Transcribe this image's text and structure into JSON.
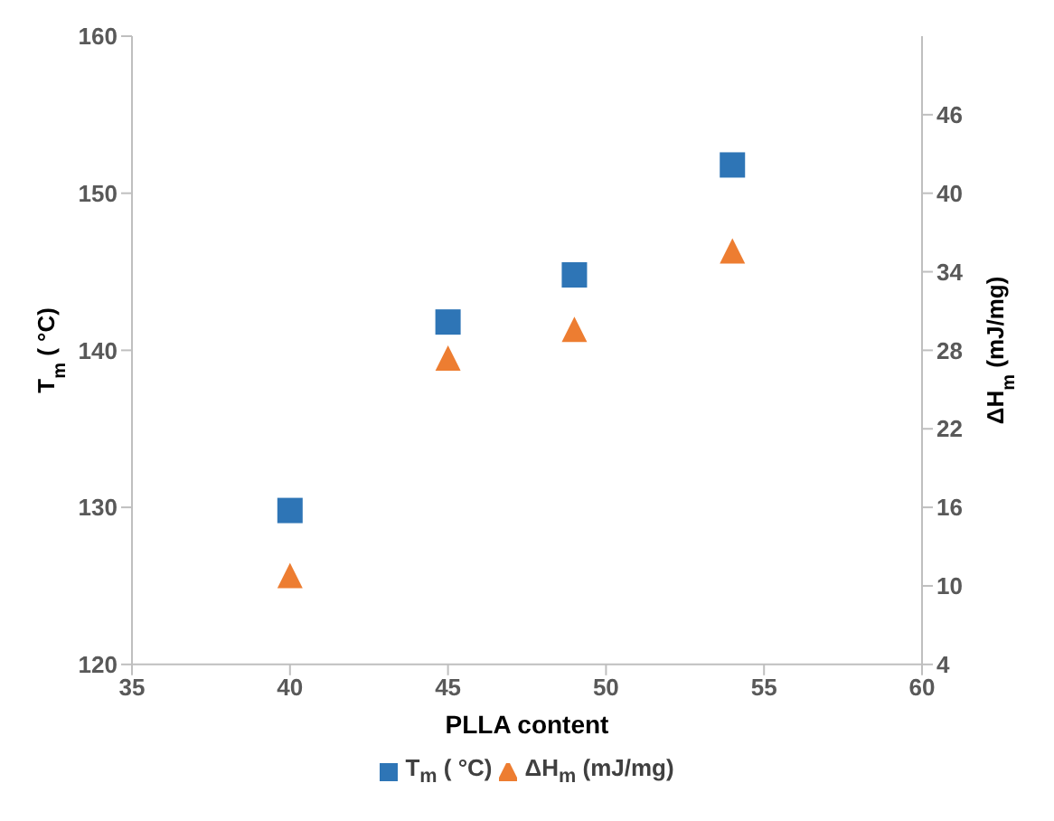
{
  "chart_data": {
    "type": "scatter",
    "xlabel": "PLLA content",
    "ylabel": "T$_{m}$ ( °C)",
    "y2label": "ΔH$_{m}$ (mJ/mg)",
    "xlim": [
      35,
      60
    ],
    "xticks": [
      35,
      40,
      45,
      50,
      55,
      60
    ],
    "ylim": [
      120,
      160
    ],
    "yticks": [
      120,
      130,
      140,
      150,
      160
    ],
    "y2lim": [
      4,
      52
    ],
    "y2ticks": [
      4,
      10,
      16,
      22,
      28,
      34,
      40,
      46
    ],
    "legend": "bottom",
    "grid": false,
    "series": [
      {
        "name": "T$_{m}$ ( °C)",
        "color": "#2e75b6",
        "marker": "square",
        "x": [
          40,
          45,
          49,
          54
        ],
        "values": [
          129.8,
          141.8,
          144.8,
          151.8
        ]
      },
      {
        "name": "ΔH$_{m}$ (mJ/mg)",
        "color": "#ed7d31",
        "marker": "triangle",
        "axis": "y2",
        "x": [
          40,
          45,
          49,
          54
        ],
        "values": [
          10.8,
          27.4,
          29.6,
          35.6
        ]
      }
    ]
  }
}
